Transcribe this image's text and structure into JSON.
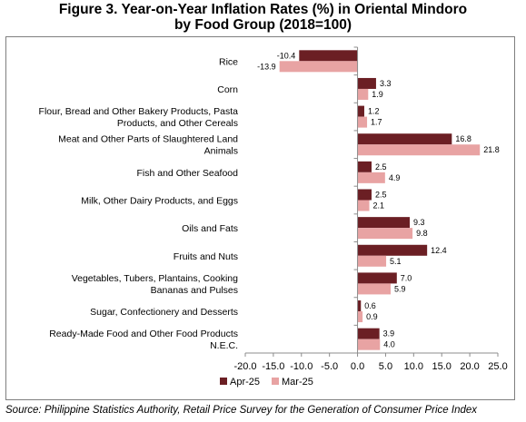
{
  "title_line1": "Figure 3. Year-on-Year Inflation Rates (%) in Oriental Mindoro",
  "title_line2": "by Food Group (2018=100)",
  "source": "Source: Philippine Statistics Authority, Retail Price Survey for the Generation of Consumer Price Index",
  "colors": {
    "Apr-25": "#6b1f24",
    "Mar-25": "#e8a3a3",
    "axis": "#8c8c8c"
  },
  "chart_data": {
    "type": "bar",
    "orientation": "horizontal",
    "categories": [
      [
        "Rice"
      ],
      [
        "Corn"
      ],
      [
        "Flour, Bread and Other Bakery Products, Pasta",
        "Products, and Other Cereals"
      ],
      [
        "Meat and Other Parts of Slaughtered Land",
        "Animals"
      ],
      [
        "Fish and Other Seafood"
      ],
      [
        "Milk, Other Dairy Products, and Eggs"
      ],
      [
        "Oils and Fats"
      ],
      [
        "Fruits and Nuts"
      ],
      [
        "Vegetables, Tubers, Plantains, Cooking",
        "Bananas and Pulses"
      ],
      [
        "Sugar, Confectionery and Desserts"
      ],
      [
        "Ready-Made Food and Other Food Products",
        "N.E.C."
      ]
    ],
    "series": [
      {
        "name": "Apr-25",
        "values": [
          -10.4,
          3.3,
          1.2,
          16.8,
          2.5,
          2.5,
          9.3,
          12.4,
          7.0,
          0.6,
          3.9
        ]
      },
      {
        "name": "Mar-25",
        "values": [
          -13.9,
          1.9,
          1.7,
          21.8,
          4.9,
          2.1,
          9.8,
          5.1,
          5.9,
          0.9,
          4.0
        ]
      }
    ],
    "xlim": [
      -20.0,
      25.0
    ],
    "xticks": [
      -20.0,
      -15.0,
      -10.0,
      -5.0,
      0.0,
      5.0,
      10.0,
      15.0,
      20.0,
      25.0
    ],
    "legend": [
      "Apr-25",
      "Mar-25"
    ],
    "legend_position": "bottom",
    "grid": false
  }
}
